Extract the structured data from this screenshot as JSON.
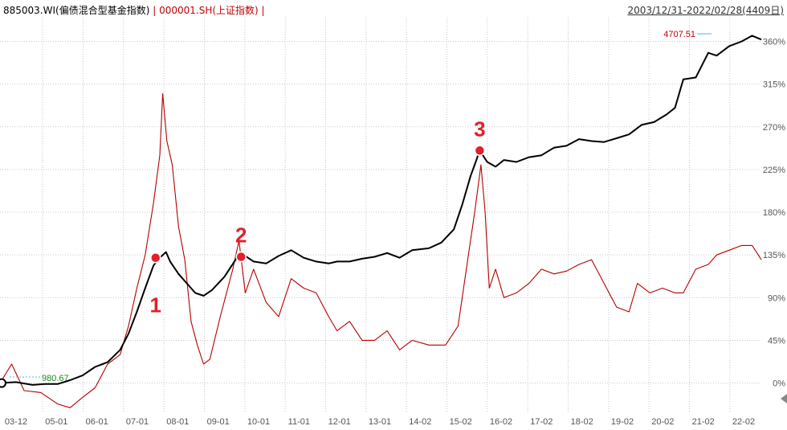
{
  "legend": {
    "series1": "885003.WI(偏债混合型基金指数)",
    "separator": " | ",
    "series2": "000001.SH(上证指数)",
    "trail": " |"
  },
  "date_range": "2003/12/31-2022/02/28(4409日)",
  "colors": {
    "series1": "#000000",
    "series2": "#b40000",
    "grid": "#c8c8c8",
    "marker": "#e0202a",
    "base_label": "#1a8a1a"
  },
  "chart_data": {
    "type": "line",
    "x_tick_labels": [
      "03-12",
      "05-01",
      "06-01",
      "07-01",
      "08-01",
      "09-01",
      "10-01",
      "11-01",
      "12-01",
      "13-01",
      "14-02",
      "15-02",
      "16-02",
      "17-02",
      "18-02",
      "19-02",
      "20-02",
      "21-02",
      "22-02"
    ],
    "y_tick_labels": [
      "0%",
      "45%",
      "90%",
      "135%",
      "180%",
      "225%",
      "270%",
      "315%",
      "360%"
    ],
    "y_ticks": [
      0,
      45,
      90,
      135,
      180,
      225,
      270,
      315,
      360
    ],
    "ylim": [
      -30,
      385
    ],
    "x_numeric_range": [
      2003.92,
      2022.17
    ],
    "grid": true,
    "series": [
      {
        "name": "885003.WI(偏债混合型基金指数)",
        "points": [
          [
            2003.92,
            0
          ],
          [
            2004.3,
            1
          ],
          [
            2004.7,
            -2
          ],
          [
            2005.0,
            -1
          ],
          [
            2005.3,
            -1
          ],
          [
            2005.6,
            3
          ],
          [
            2005.9,
            8
          ],
          [
            2006.2,
            17
          ],
          [
            2006.5,
            22
          ],
          [
            2006.8,
            35
          ],
          [
            2007.0,
            52
          ],
          [
            2007.2,
            75
          ],
          [
            2007.4,
            100
          ],
          [
            2007.6,
            124
          ],
          [
            2007.75,
            132
          ],
          [
            2007.9,
            138
          ],
          [
            2008.0,
            128
          ],
          [
            2008.2,
            115
          ],
          [
            2008.4,
            105
          ],
          [
            2008.6,
            95
          ],
          [
            2008.8,
            92
          ],
          [
            2009.0,
            98
          ],
          [
            2009.3,
            112
          ],
          [
            2009.6,
            132
          ],
          [
            2009.8,
            134
          ],
          [
            2010.0,
            128
          ],
          [
            2010.3,
            126
          ],
          [
            2010.6,
            134
          ],
          [
            2010.9,
            140
          ],
          [
            2011.2,
            132
          ],
          [
            2011.5,
            128
          ],
          [
            2011.8,
            126
          ],
          [
            2012.0,
            128
          ],
          [
            2012.3,
            128
          ],
          [
            2012.6,
            131
          ],
          [
            2012.9,
            133
          ],
          [
            2013.2,
            137
          ],
          [
            2013.5,
            132
          ],
          [
            2013.8,
            140
          ],
          [
            2014.2,
            142
          ],
          [
            2014.5,
            148
          ],
          [
            2014.8,
            162
          ],
          [
            2015.0,
            188
          ],
          [
            2015.2,
            218
          ],
          [
            2015.3,
            230
          ],
          [
            2015.42,
            245
          ],
          [
            2015.6,
            233
          ],
          [
            2015.8,
            228
          ],
          [
            2016.0,
            235
          ],
          [
            2016.3,
            233
          ],
          [
            2016.6,
            238
          ],
          [
            2016.9,
            240
          ],
          [
            2017.2,
            248
          ],
          [
            2017.5,
            250
          ],
          [
            2017.8,
            257
          ],
          [
            2018.1,
            255
          ],
          [
            2018.4,
            254
          ],
          [
            2018.7,
            258
          ],
          [
            2019.0,
            262
          ],
          [
            2019.3,
            272
          ],
          [
            2019.6,
            275
          ],
          [
            2019.9,
            283
          ],
          [
            2020.1,
            290
          ],
          [
            2020.3,
            320
          ],
          [
            2020.6,
            322
          ],
          [
            2020.9,
            348
          ],
          [
            2021.1,
            345
          ],
          [
            2021.4,
            355
          ],
          [
            2021.7,
            360
          ],
          [
            2021.95,
            366
          ],
          [
            2022.17,
            362
          ]
        ]
      },
      {
        "name": "000001.SH(上证指数)",
        "points": [
          [
            2003.92,
            0
          ],
          [
            2004.2,
            20
          ],
          [
            2004.5,
            -8
          ],
          [
            2004.9,
            -10
          ],
          [
            2005.3,
            -22
          ],
          [
            2005.6,
            -26
          ],
          [
            2005.9,
            -15
          ],
          [
            2006.2,
            -5
          ],
          [
            2006.5,
            20
          ],
          [
            2006.8,
            30
          ],
          [
            2007.0,
            60
          ],
          [
            2007.2,
            100
          ],
          [
            2007.4,
            135
          ],
          [
            2007.6,
            190
          ],
          [
            2007.75,
            240
          ],
          [
            2007.82,
            305
          ],
          [
            2007.92,
            255
          ],
          [
            2008.05,
            230
          ],
          [
            2008.2,
            165
          ],
          [
            2008.35,
            130
          ],
          [
            2008.5,
            65
          ],
          [
            2008.65,
            40
          ],
          [
            2008.8,
            20
          ],
          [
            2008.95,
            25
          ],
          [
            2009.2,
            70
          ],
          [
            2009.5,
            120
          ],
          [
            2009.65,
            150
          ],
          [
            2009.8,
            95
          ],
          [
            2010.0,
            120
          ],
          [
            2010.3,
            85
          ],
          [
            2010.6,
            70
          ],
          [
            2010.9,
            110
          ],
          [
            2011.2,
            100
          ],
          [
            2011.5,
            95
          ],
          [
            2011.8,
            70
          ],
          [
            2012.0,
            55
          ],
          [
            2012.3,
            65
          ],
          [
            2012.6,
            45
          ],
          [
            2012.9,
            45
          ],
          [
            2013.2,
            55
          ],
          [
            2013.5,
            35
          ],
          [
            2013.8,
            45
          ],
          [
            2014.2,
            40
          ],
          [
            2014.6,
            40
          ],
          [
            2014.9,
            60
          ],
          [
            2015.1,
            120
          ],
          [
            2015.3,
            180
          ],
          [
            2015.45,
            230
          ],
          [
            2015.55,
            180
          ],
          [
            2015.65,
            100
          ],
          [
            2015.8,
            120
          ],
          [
            2016.0,
            90
          ],
          [
            2016.3,
            95
          ],
          [
            2016.6,
            105
          ],
          [
            2016.9,
            120
          ],
          [
            2017.2,
            115
          ],
          [
            2017.5,
            118
          ],
          [
            2017.8,
            125
          ],
          [
            2018.1,
            130
          ],
          [
            2018.4,
            105
          ],
          [
            2018.7,
            80
          ],
          [
            2019.0,
            75
          ],
          [
            2019.2,
            105
          ],
          [
            2019.5,
            95
          ],
          [
            2019.8,
            100
          ],
          [
            2020.1,
            95
          ],
          [
            2020.3,
            95
          ],
          [
            2020.6,
            120
          ],
          [
            2020.9,
            125
          ],
          [
            2021.1,
            135
          ],
          [
            2021.4,
            140
          ],
          [
            2021.7,
            145
          ],
          [
            2021.95,
            145
          ],
          [
            2022.17,
            130
          ]
        ]
      }
    ],
    "markers": [
      {
        "label": "1",
        "x": 2007.65,
        "y": 132
      },
      {
        "label": "2",
        "x": 2009.7,
        "y": 133
      },
      {
        "label": "3",
        "x": 2015.42,
        "y": 245
      }
    ],
    "end_label": "4707.51",
    "base_label": "980.67"
  }
}
